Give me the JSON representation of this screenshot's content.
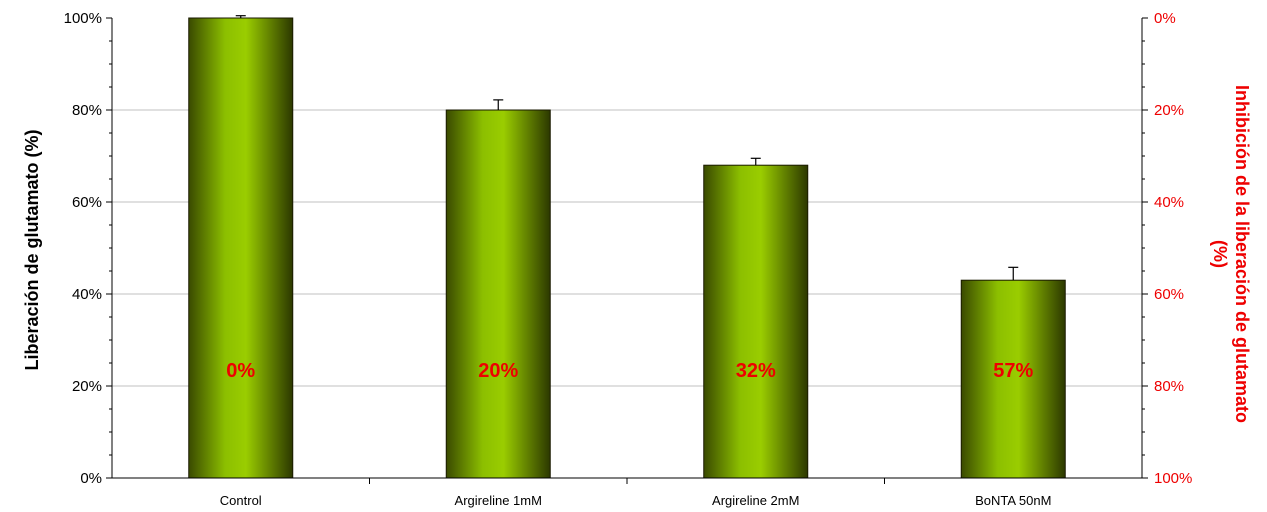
{
  "chart_data": {
    "type": "bar",
    "title": "",
    "categories": [
      "Control",
      "Argireline 1mM",
      "Argireline 2mM",
      "BoNTA 50nM"
    ],
    "values": [
      100,
      80,
      68,
      43
    ],
    "error": [
      0.5,
      2.2,
      1.5,
      2.8
    ],
    "bar_labels": [
      "0%",
      "20%",
      "32%",
      "57%"
    ],
    "ylabel": "Liberación de glutamato (%)",
    "ylim": [
      0,
      100
    ],
    "yticks": [
      0,
      20,
      40,
      60,
      80,
      100
    ],
    "ytick_labels": [
      "0%",
      "20%",
      "40%",
      "60%",
      "80%",
      "100%"
    ],
    "y2label_line1": "Inhibición de la liberación de glutamato",
    "y2label_line2": "(%)",
    "y2ticks": [
      0,
      20,
      40,
      60,
      80,
      100
    ],
    "y2tick_labels": [
      "0%",
      "20%",
      "40%",
      "60%",
      "80%",
      "100%"
    ],
    "y2_inverted": true,
    "grid": true,
    "colors": {
      "bar_light": "#9acd00",
      "bar_dark": "#3a4a00",
      "bar_edge": "#1a1a00",
      "secondary_axis": "#ee0000",
      "grid": "#c0c0c0",
      "axis": "#000000"
    }
  }
}
